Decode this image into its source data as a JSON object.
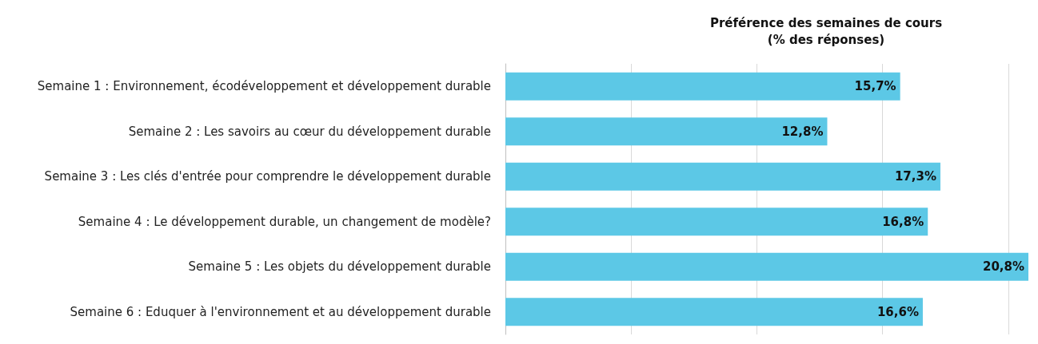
{
  "chart_data": {
    "type": "bar",
    "orientation": "horizontal",
    "title": "Préférence des semaines de cours",
    "subtitle": "(% des réponses)",
    "categories": [
      "Semaine 1 : Environnement, écodéveloppement et développement durable",
      "Semaine 2 : Les savoirs au cœur du développement durable",
      "Semaine 3 : Les clés d'entrée pour comprendre le développement durable",
      "Semaine 4 : Le développement durable, un changement de modèle?",
      "Semaine 5 : Les objets du développement durable",
      "Semaine 6 : Eduquer à l'environnement et au développement durable"
    ],
    "values": [
      15.7,
      12.8,
      17.3,
      16.8,
      20.8,
      16.6
    ],
    "value_labels": [
      "15,7%",
      "12,8%",
      "17,3%",
      "16,8%",
      "20,8%",
      "16,6%"
    ],
    "color": "#5cc8e6",
    "xticks": [
      {
        "value": 0,
        "label": null
      },
      {
        "value": 5,
        "label": null
      },
      {
        "value": 10,
        "label": null
      },
      {
        "value": 15,
        "label": null
      },
      {
        "value": 20,
        "label": null
      }
    ],
    "tick_labels": "y",
    "grid": "x"
  }
}
